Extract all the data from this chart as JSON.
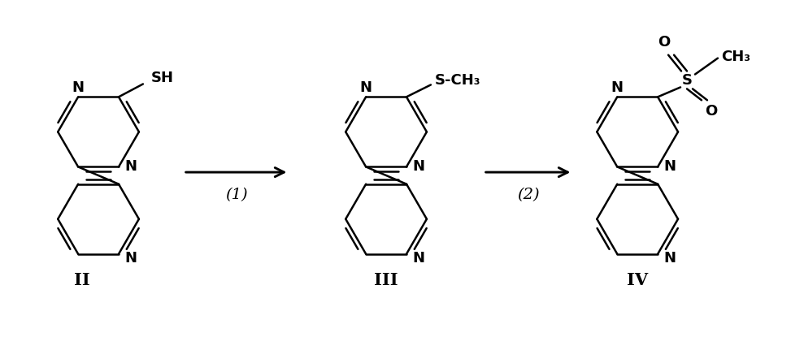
{
  "background_color": "#ffffff",
  "figure_width": 9.89,
  "figure_height": 4.47,
  "dpi": 100,
  "label_II": "II",
  "label_III": "III",
  "label_IV": "IV",
  "arrow1_label": "(1)",
  "arrow2_label": "(2)",
  "line_color": "#000000",
  "text_color": "#000000",
  "line_width": 1.8
}
